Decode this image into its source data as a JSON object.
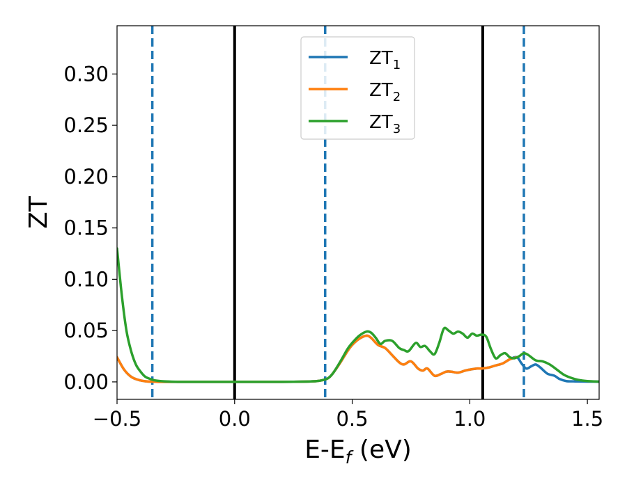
{
  "chart_data": {
    "type": "line",
    "xlabel_main": "E-E",
    "xlabel_sub": "f",
    "xlabel_unit": " (eV)",
    "ylabel": "ZT",
    "xlim": [
      -0.5,
      1.55
    ],
    "ylim": [
      -0.017,
      0.347
    ],
    "xticks": [
      -0.5,
      0.0,
      0.5,
      1.0,
      1.5
    ],
    "xtick_labels": [
      "−0.5",
      "0.0",
      "0.5",
      "1.0",
      "1.5"
    ],
    "yticks": [
      0.0,
      0.05,
      0.1,
      0.15,
      0.2,
      0.25,
      0.3
    ],
    "ytick_labels": [
      "0.00",
      "0.05",
      "0.10",
      "0.15",
      "0.20",
      "0.25",
      "0.30"
    ],
    "grid": false,
    "legend_position": "top-center",
    "vlines": [
      {
        "x": -0.35,
        "style": "dashed",
        "color": "#1f77b4"
      },
      {
        "x": 0.0,
        "style": "solid",
        "color": "#000000"
      },
      {
        "x": 0.385,
        "style": "dashed",
        "color": "#1f77b4"
      },
      {
        "x": 1.055,
        "style": "solid",
        "color": "#000000"
      },
      {
        "x": 1.23,
        "style": "dashed",
        "color": "#1f77b4"
      }
    ],
    "series": [
      {
        "name_main": "ZT",
        "name_sub": "1",
        "color": "#1f77b4",
        "x": [
          -0.5,
          -0.47,
          -0.44,
          -0.41,
          -0.38,
          -0.35,
          -0.3,
          -0.2,
          0.0,
          0.2,
          0.3,
          0.35,
          0.38,
          0.4,
          0.42,
          0.45,
          0.48,
          0.5,
          0.53,
          0.56,
          0.58,
          0.61,
          0.64,
          0.67,
          0.7,
          0.72,
          0.75,
          0.78,
          0.8,
          0.82,
          0.85,
          0.88,
          0.9,
          0.92,
          0.95,
          0.98,
          1.0,
          1.03,
          1.05,
          1.08,
          1.11,
          1.14,
          1.17,
          1.2,
          1.22,
          1.24,
          1.26,
          1.28,
          1.3,
          1.33,
          1.36,
          1.38,
          1.41,
          1.44,
          1.47,
          1.5,
          1.55
        ],
        "y": [
          0.024,
          0.012,
          0.005,
          0.002,
          0.0006,
          0.0002,
          0.0,
          0.0,
          0.0,
          0.0,
          0.0003,
          0.0008,
          0.002,
          0.004,
          0.009,
          0.019,
          0.03,
          0.036,
          0.042,
          0.045,
          0.043,
          0.036,
          0.033,
          0.026,
          0.019,
          0.017,
          0.02,
          0.013,
          0.011,
          0.013,
          0.006,
          0.008,
          0.01,
          0.01,
          0.009,
          0.011,
          0.012,
          0.013,
          0.013,
          0.014,
          0.016,
          0.018,
          0.022,
          0.024,
          0.018,
          0.013,
          0.015,
          0.017,
          0.014,
          0.008,
          0.006,
          0.003,
          0.0008,
          0.0005,
          0.0004,
          0.0003,
          0.0002
        ]
      },
      {
        "name_main": "ZT",
        "name_sub": "2",
        "color": "#ff7f0e",
        "x": [
          -0.5,
          -0.47,
          -0.44,
          -0.41,
          -0.38,
          -0.35,
          -0.3,
          -0.2,
          0.0,
          0.2,
          0.3,
          0.35,
          0.38,
          0.4,
          0.42,
          0.45,
          0.48,
          0.5,
          0.53,
          0.56,
          0.58,
          0.61,
          0.64,
          0.67,
          0.7,
          0.72,
          0.75,
          0.78,
          0.8,
          0.82,
          0.85,
          0.88,
          0.9,
          0.92,
          0.95,
          0.98,
          1.0,
          1.03,
          1.05,
          1.08,
          1.11,
          1.14,
          1.17,
          1.2
        ],
        "y": [
          0.024,
          0.012,
          0.005,
          0.002,
          0.0006,
          0.0002,
          0.0,
          0.0,
          0.0,
          0.0,
          0.0003,
          0.0008,
          0.002,
          0.004,
          0.009,
          0.019,
          0.03,
          0.036,
          0.042,
          0.045,
          0.043,
          0.036,
          0.033,
          0.026,
          0.019,
          0.017,
          0.02,
          0.013,
          0.011,
          0.013,
          0.006,
          0.008,
          0.01,
          0.01,
          0.009,
          0.011,
          0.012,
          0.013,
          0.013,
          0.014,
          0.016,
          0.018,
          0.022,
          0.024
        ]
      },
      {
        "name_main": "ZT",
        "name_sub": "3",
        "color": "#2ca02c",
        "x": [
          -0.5,
          -0.48,
          -0.46,
          -0.44,
          -0.42,
          -0.4,
          -0.38,
          -0.36,
          -0.34,
          -0.3,
          -0.25,
          -0.2,
          0.0,
          0.2,
          0.3,
          0.35,
          0.38,
          0.4,
          0.42,
          0.45,
          0.48,
          0.5,
          0.53,
          0.56,
          0.58,
          0.6,
          0.62,
          0.64,
          0.67,
          0.7,
          0.72,
          0.74,
          0.77,
          0.79,
          0.81,
          0.83,
          0.85,
          0.87,
          0.89,
          0.91,
          0.93,
          0.95,
          0.97,
          0.99,
          1.01,
          1.03,
          1.05,
          1.07,
          1.09,
          1.11,
          1.13,
          1.15,
          1.17,
          1.19,
          1.21,
          1.23,
          1.25,
          1.28,
          1.31,
          1.34,
          1.37,
          1.4,
          1.43,
          1.46,
          1.5,
          1.55
        ],
        "y": [
          0.13,
          0.085,
          0.05,
          0.03,
          0.017,
          0.01,
          0.005,
          0.003,
          0.0015,
          0.0005,
          0.0001,
          0.0,
          0.0,
          0.0,
          0.0003,
          0.0008,
          0.002,
          0.004,
          0.009,
          0.02,
          0.032,
          0.038,
          0.045,
          0.049,
          0.048,
          0.043,
          0.037,
          0.04,
          0.04,
          0.033,
          0.031,
          0.03,
          0.038,
          0.034,
          0.035,
          0.03,
          0.027,
          0.038,
          0.052,
          0.05,
          0.047,
          0.049,
          0.047,
          0.043,
          0.047,
          0.045,
          0.046,
          0.044,
          0.032,
          0.023,
          0.026,
          0.028,
          0.024,
          0.023,
          0.025,
          0.028,
          0.026,
          0.021,
          0.02,
          0.017,
          0.012,
          0.007,
          0.004,
          0.002,
          0.0008,
          0.0003
        ]
      }
    ]
  }
}
